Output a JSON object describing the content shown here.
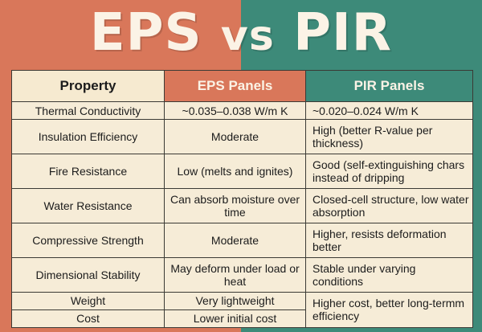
{
  "title": {
    "left": "EPS",
    "vs": "vs",
    "right": "PIR PANELS"
  },
  "colors": {
    "eps": "#d9775a",
    "pir": "#3d8a79",
    "paper": "#f6ecd7"
  },
  "table": {
    "headers": [
      "Property",
      "EPS Panels",
      "PIR Panels"
    ],
    "rows": [
      [
        "Thermal Conductivity",
        "~0.035–0.038 W/m K",
        "~0.020–0.024 W/m K"
      ],
      [
        "Insulation Efficiency",
        "Moderate",
        "High (better R-value per thickness)"
      ],
      [
        "Fire Resistance",
        "Low (melts and ignites)",
        "Good (self-extinguishing chars instead of dripping"
      ],
      [
        "Water Resistance",
        "Can absorb moisture over time",
        "Closed-cell structure, low water absorption"
      ],
      [
        "Compressive Strength",
        "Moderate",
        "Higher, resists deformation better"
      ],
      [
        "Dimensional Stability",
        "May deform under load or heat",
        "Stable under varying conditions"
      ],
      [
        "Weight",
        "Very lightweight",
        "Higher cost, better long-termm efficiency"
      ],
      [
        "Cost",
        "Lower initial cost",
        ""
      ]
    ]
  }
}
